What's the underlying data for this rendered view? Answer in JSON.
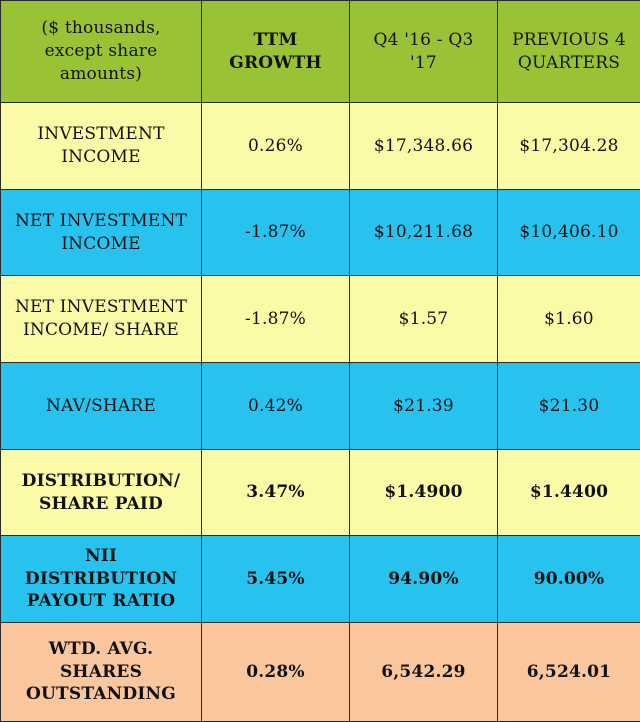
{
  "chart_data": {
    "type": "table",
    "columns": [
      "($ thousands, except share amounts)",
      "TTM GROWTH",
      "Q4 '16 - Q3 '17",
      "PREVIOUS 4 QUARTERS"
    ],
    "rows": [
      {
        "label": "INVESTMENT INCOME",
        "cells": [
          "0.26%",
          "$17,348.66",
          "$17,304.28"
        ],
        "bg": "#fbfaa6",
        "bold": false
      },
      {
        "label": "NET INVESTMENT INCOME",
        "cells": [
          "-1.87%",
          "$10,211.68",
          "$10,406.10"
        ],
        "bg": "#28c2ef",
        "bold": false
      },
      {
        "label": "NET INVESTMENT INCOME/ SHARE",
        "cells": [
          "-1.87%",
          "$1.57",
          "$1.60"
        ],
        "bg": "#fbfaa6",
        "bold": false
      },
      {
        "label": "NAV/SHARE",
        "cells": [
          "0.42%",
          "$21.39",
          "$21.30"
        ],
        "bg": "#28c2ef",
        "bold": false
      },
      {
        "label": "DISTRIBUTION/ SHARE PAID",
        "cells": [
          "3.47%",
          "$1.4900",
          "$1.4400"
        ],
        "bg": "#fbfaa6",
        "bold": true
      },
      {
        "label": "NII DISTRIBUTION PAYOUT RATIO",
        "cells": [
          "5.45%",
          "94.90%",
          "90.00%"
        ],
        "bg": "#28c2ef",
        "bold": true
      },
      {
        "label": "WTD. AVG. SHARES OUTSTANDING",
        "cells": [
          "0.28%",
          "6,542.29",
          "6,524.01"
        ],
        "bg": "#f9c69e",
        "bold": true
      }
    ]
  }
}
